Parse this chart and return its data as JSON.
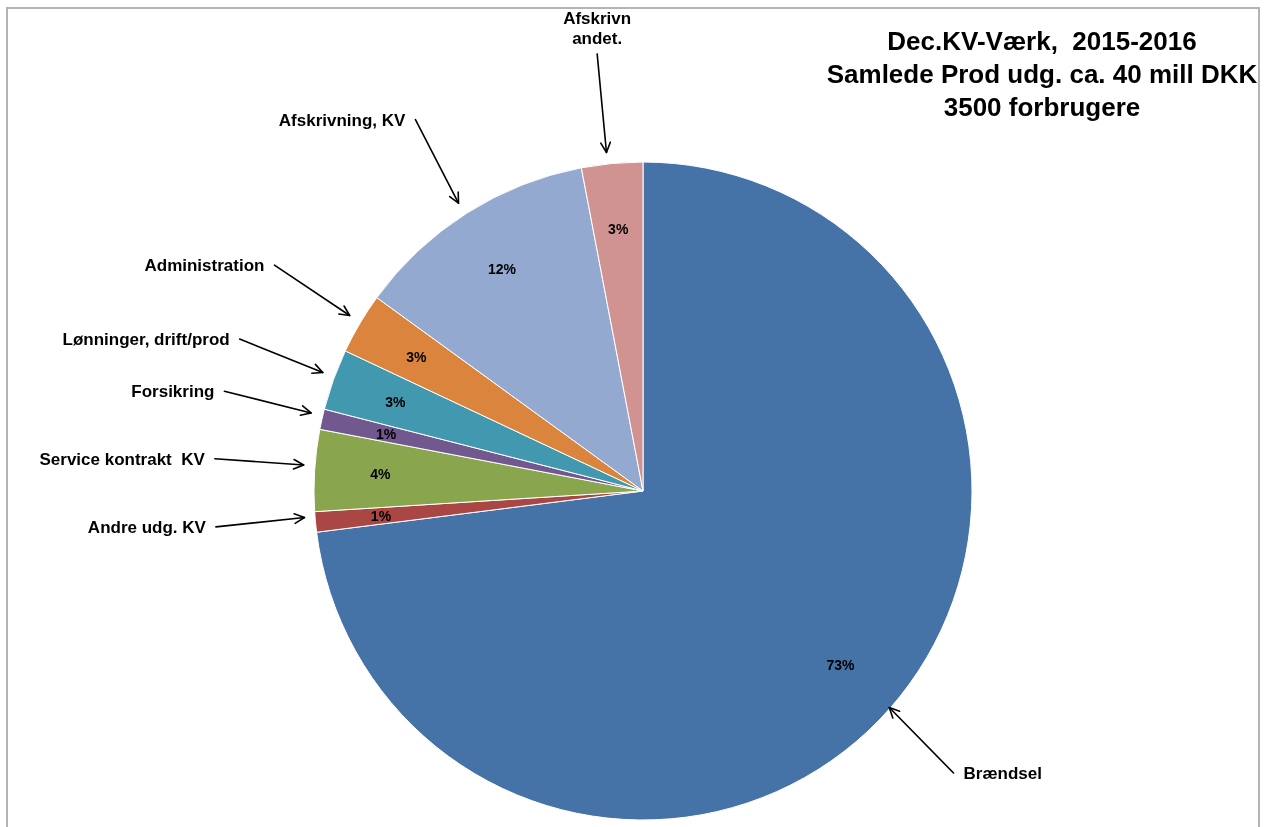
{
  "chart_data": {
    "type": "pie",
    "title": "Dec.KV-Værk,  2015-2016\nSamlede Prod udg. ca. 40 mill DKK\n3500 forbrugere",
    "categories": [
      "Brændsel",
      "Andre udg. KV",
      "Service kontrakt  KV",
      "Forsikring",
      "Lønninger, drift/prod",
      "Administration",
      "Afskrivning, KV",
      "Afskrivn\nandet."
    ],
    "values": [
      73,
      1,
      4,
      1,
      3,
      3,
      12,
      3
    ],
    "colors": [
      "#4572a7",
      "#aa4643",
      "#89a54e",
      "#71588f",
      "#4198af",
      "#db843d",
      "#93a9cf",
      "#d19392"
    ],
    "value_labels": [
      "73%",
      "1%",
      "4%",
      "1%",
      "3%",
      "3%",
      "12%",
      "3%"
    ]
  }
}
